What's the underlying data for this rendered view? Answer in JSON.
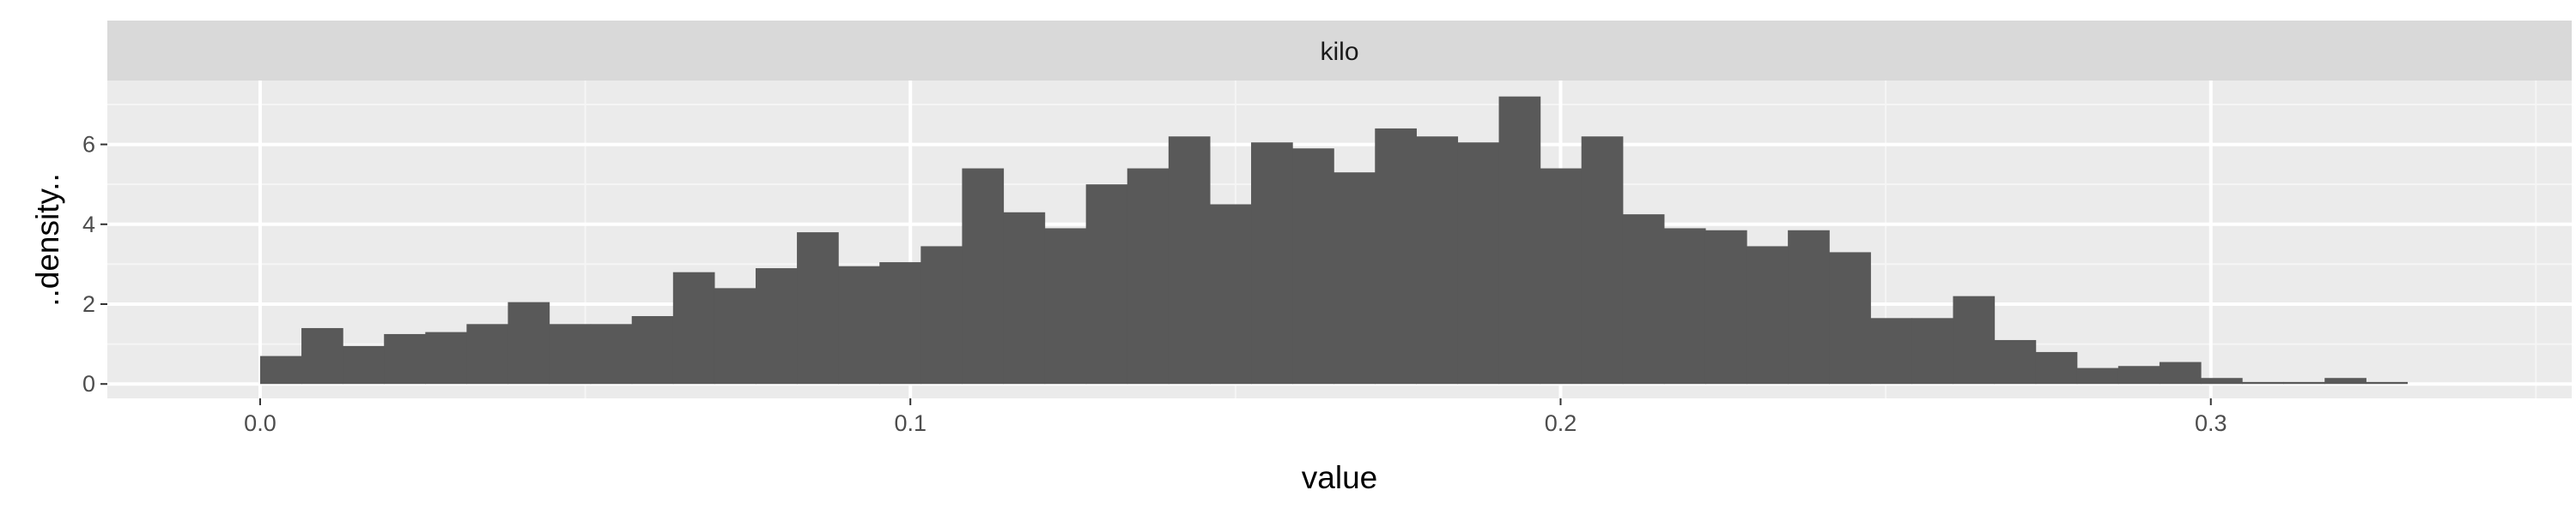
{
  "chart_data": {
    "type": "histogram",
    "facet_label": "kilo",
    "xlabel": "value",
    "ylabel": "..density..",
    "xlim": [
      -0.0235,
      0.3555
    ],
    "ylim": [
      -0.36,
      7.6
    ],
    "x_ticks": [
      0.0,
      0.1,
      0.2,
      0.3
    ],
    "x_tick_labels": [
      "0.0",
      "0.1",
      "0.2",
      "0.3"
    ],
    "y_ticks": [
      0,
      2,
      4,
      6
    ],
    "y_tick_labels": [
      "0",
      "2",
      "4",
      "6"
    ],
    "x_minor_ticks": [
      -0.05,
      0.05,
      0.15,
      0.25,
      0.35
    ],
    "y_minor_ticks": [
      1,
      3,
      5,
      7
    ],
    "bin_width": 0.00635,
    "bin_start": 0.0,
    "values": [
      0.7,
      1.4,
      0.95,
      1.25,
      1.3,
      1.5,
      2.05,
      1.5,
      1.5,
      1.7,
      2.8,
      2.4,
      2.9,
      3.8,
      2.95,
      3.05,
      3.45,
      5.4,
      4.3,
      3.9,
      5.0,
      5.4,
      6.2,
      4.5,
      6.05,
      5.9,
      5.3,
      6.4,
      6.2,
      6.05,
      7.2,
      5.4,
      6.2,
      4.25,
      3.9,
      3.85,
      3.45,
      3.85,
      3.3,
      1.65,
      1.65,
      2.2,
      1.1,
      0.8,
      0.4,
      0.45,
      0.55,
      0.15,
      0.05,
      0.05,
      0.15,
      0.05
    ],
    "colors": {
      "panel_background": "#ebebeb",
      "grid_major": "#ffffff",
      "grid_minor": "#f5f5f5",
      "bar_fill": "#595959",
      "strip_background": "#d9d9d9",
      "tick_mark": "#333333"
    }
  }
}
